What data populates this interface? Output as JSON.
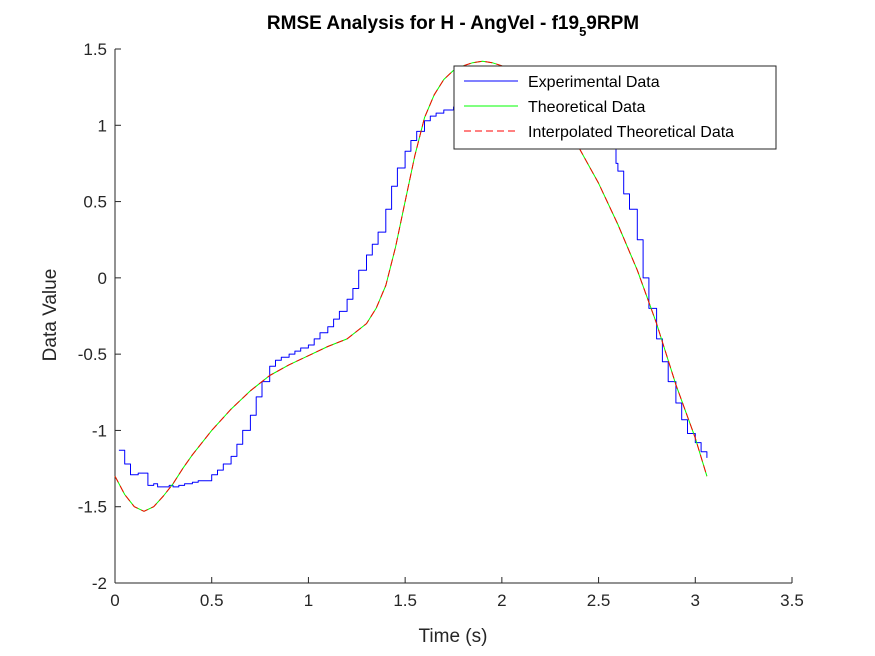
{
  "chart_data": {
    "type": "line",
    "title": {
      "main": "RMSE Analysis for H - AngVel - f19",
      "subscript": "5",
      "suffix": "9RPM"
    },
    "xlabel": "Time (s)",
    "ylabel": "Data Value",
    "xlim": [
      0,
      3.5
    ],
    "ylim": [
      -2,
      1.5
    ],
    "xticks": [
      0,
      0.5,
      1,
      1.5,
      2,
      2.5,
      3,
      3.5
    ],
    "xtick_labels": [
      "0",
      "0.5",
      "1",
      "1.5",
      "2",
      "2.5",
      "3",
      "3.5"
    ],
    "yticks": [
      -2,
      -1.5,
      -1,
      -0.5,
      0,
      0.5,
      1,
      1.5
    ],
    "ytick_labels": [
      "-2",
      "-1.5",
      "-1",
      "-0.5",
      "0",
      "0.5",
      "1",
      "1.5"
    ],
    "grid": false,
    "legend_position": "top-right",
    "series": [
      {
        "name": "Experimental Data",
        "color": "#0000ff",
        "style": "solid",
        "x": [
          0.02,
          0.05,
          0.08,
          0.1,
          0.12,
          0.14,
          0.17,
          0.2,
          0.22,
          0.25,
          0.28,
          0.3,
          0.33,
          0.36,
          0.4,
          0.43,
          0.47,
          0.5,
          0.53,
          0.56,
          0.6,
          0.63,
          0.66,
          0.7,
          0.73,
          0.76,
          0.8,
          0.83,
          0.86,
          0.9,
          0.93,
          0.96,
          1.0,
          1.03,
          1.06,
          1.1,
          1.13,
          1.16,
          1.2,
          1.23,
          1.26,
          1.3,
          1.33,
          1.36,
          1.4,
          1.43,
          1.46,
          1.5,
          1.53,
          1.56,
          1.6,
          1.63,
          1.66,
          1.7,
          1.75,
          1.8,
          1.85,
          1.9,
          1.95,
          2.0,
          2.05,
          2.1,
          2.15,
          2.2,
          2.25,
          2.3,
          2.35,
          2.4,
          2.45,
          2.5,
          2.53,
          2.56,
          2.58,
          2.59,
          2.6,
          2.63,
          2.66,
          2.7,
          2.73,
          2.76,
          2.8,
          2.83,
          2.86,
          2.9,
          2.93,
          2.96,
          3.0,
          3.03,
          3.06
        ],
        "values": [
          -1.13,
          -1.22,
          -1.29,
          -1.29,
          -1.28,
          -1.28,
          -1.36,
          -1.35,
          -1.37,
          -1.37,
          -1.36,
          -1.37,
          -1.36,
          -1.35,
          -1.34,
          -1.33,
          -1.33,
          -1.29,
          -1.26,
          -1.22,
          -1.17,
          -1.09,
          -1.0,
          -0.9,
          -0.78,
          -0.68,
          -0.58,
          -0.54,
          -0.52,
          -0.5,
          -0.48,
          -0.46,
          -0.44,
          -0.4,
          -0.36,
          -0.32,
          -0.27,
          -0.22,
          -0.14,
          -0.07,
          0.05,
          0.15,
          0.22,
          0.3,
          0.45,
          0.6,
          0.72,
          0.83,
          0.9,
          0.96,
          1.03,
          1.06,
          1.08,
          1.1,
          1.12,
          1.15,
          1.16,
          1.17,
          1.18,
          1.19,
          1.19,
          1.18,
          1.17,
          1.16,
          1.15,
          1.14,
          1.12,
          1.1,
          1.08,
          1.05,
          1.03,
          1.0,
          0.95,
          0.75,
          0.7,
          0.55,
          0.45,
          0.25,
          0.0,
          -0.2,
          -0.4,
          -0.55,
          -0.68,
          -0.82,
          -0.93,
          -1.02,
          -1.08,
          -1.14,
          -1.18
        ]
      },
      {
        "name": "Theoretical Data",
        "color": "#00ff00",
        "style": "solid",
        "x": [
          0.0,
          0.05,
          0.1,
          0.15,
          0.2,
          0.25,
          0.3,
          0.35,
          0.4,
          0.5,
          0.6,
          0.7,
          0.8,
          0.9,
          1.0,
          1.1,
          1.2,
          1.3,
          1.35,
          1.4,
          1.45,
          1.5,
          1.55,
          1.6,
          1.65,
          1.7,
          1.75,
          1.8,
          1.85,
          1.9,
          1.95,
          2.0,
          2.05,
          2.1,
          2.2,
          2.3,
          2.4,
          2.5,
          2.6,
          2.7,
          2.8,
          2.9,
          3.0,
          3.06
        ],
        "values": [
          -1.3,
          -1.42,
          -1.5,
          -1.53,
          -1.5,
          -1.43,
          -1.35,
          -1.25,
          -1.16,
          -1.0,
          -0.86,
          -0.74,
          -0.64,
          -0.57,
          -0.51,
          -0.45,
          -0.4,
          -0.3,
          -0.2,
          -0.05,
          0.2,
          0.5,
          0.8,
          1.05,
          1.2,
          1.3,
          1.36,
          1.39,
          1.41,
          1.42,
          1.41,
          1.39,
          1.35,
          1.29,
          1.2,
          1.05,
          0.85,
          0.62,
          0.35,
          0.05,
          -0.3,
          -0.7,
          -1.05,
          -1.3
        ]
      },
      {
        "name": "Interpolated Theoretical Data",
        "color": "#ff0000",
        "style": "dashed",
        "x": [
          0.0,
          0.05,
          0.1,
          0.15,
          0.2,
          0.25,
          0.3,
          0.35,
          0.4,
          0.5,
          0.6,
          0.7,
          0.8,
          0.9,
          1.0,
          1.1,
          1.2,
          1.3,
          1.35,
          1.4,
          1.45,
          1.5,
          1.55,
          1.6,
          1.65,
          1.7,
          1.75,
          1.8,
          1.85,
          1.9,
          1.95,
          2.0,
          2.05,
          2.1,
          2.2,
          2.3,
          2.4,
          2.5,
          2.6,
          2.7,
          2.8,
          2.9,
          3.0,
          3.06
        ],
        "values": [
          -1.3,
          -1.42,
          -1.5,
          -1.53,
          -1.5,
          -1.43,
          -1.35,
          -1.25,
          -1.16,
          -1.0,
          -0.86,
          -0.74,
          -0.64,
          -0.57,
          -0.51,
          -0.45,
          -0.4,
          -0.3,
          -0.2,
          -0.05,
          0.2,
          0.5,
          0.8,
          1.05,
          1.2,
          1.3,
          1.36,
          1.39,
          1.41,
          1.42,
          1.41,
          1.39,
          1.35,
          1.29,
          1.2,
          1.05,
          0.85,
          0.62,
          0.35,
          0.05,
          -0.3,
          -0.7,
          -1.05,
          -1.3
        ]
      }
    ]
  }
}
